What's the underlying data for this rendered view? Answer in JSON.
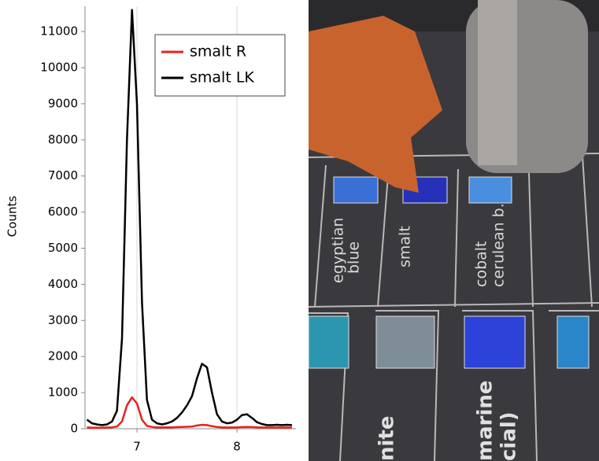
{
  "chart_data": {
    "type": "line",
    "ylabel": "Counts",
    "x": [
      6.5,
      6.55,
      6.6,
      6.65,
      6.7,
      6.75,
      6.8,
      6.85,
      6.9,
      6.95,
      7.0,
      7.05,
      7.1,
      7.15,
      7.2,
      7.25,
      7.3,
      7.35,
      7.4,
      7.45,
      7.5,
      7.55,
      7.6,
      7.65,
      7.7,
      7.75,
      7.8,
      7.85,
      7.9,
      7.95,
      8.0,
      8.05,
      8.1,
      8.15,
      8.2,
      8.25,
      8.3,
      8.35,
      8.4,
      8.45,
      8.5,
      8.55
    ],
    "series": [
      {
        "name": "smalt R",
        "color": "#e8221c",
        "values": [
          40,
          30,
          30,
          30,
          35,
          40,
          60,
          200,
          650,
          870,
          700,
          250,
          80,
          50,
          40,
          40,
          40,
          40,
          45,
          50,
          55,
          60,
          90,
          110,
          100,
          70,
          50,
          40,
          35,
          35,
          40,
          45,
          50,
          45,
          40,
          35,
          35,
          35,
          35,
          35,
          35,
          35
        ]
      },
      {
        "name": "smalt LK",
        "color": "#000000",
        "values": [
          250,
          150,
          120,
          100,
          120,
          200,
          500,
          2500,
          8000,
          11600,
          9000,
          3500,
          800,
          250,
          150,
          120,
          150,
          200,
          300,
          450,
          650,
          900,
          1400,
          1800,
          1700,
          1000,
          400,
          200,
          150,
          170,
          250,
          380,
          400,
          300,
          180,
          130,
          100,
          100,
          110,
          100,
          110,
          100
        ]
      }
    ],
    "xlim": [
      6.48,
      8.59
    ],
    "ylim": [
      0,
      11700
    ],
    "xticks": [
      7,
      8
    ],
    "yticks": [
      0,
      1000,
      2000,
      3000,
      4000,
      5000,
      6000,
      7000,
      8000,
      9000,
      10000,
      11000
    ],
    "grid": "x",
    "legend": "upper right"
  },
  "photo": {
    "labels": [
      "egyptian",
      "blue",
      "smalt",
      "cobalt",
      "cerulean b.",
      "nite",
      "marine",
      "cial)"
    ]
  }
}
